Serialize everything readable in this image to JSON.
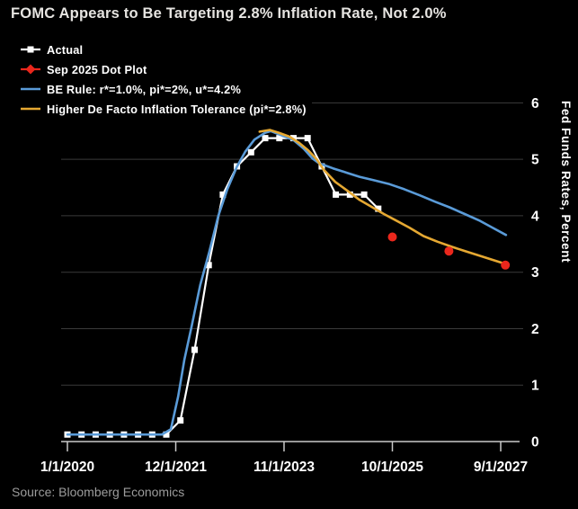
{
  "title": "FOMC Appears to Be Targeting 2.8% Inflation Rate, Not 2.0%",
  "source": "Source: Bloomberg Economics",
  "colors": {
    "actual": "#ffffff",
    "dot_plot": "#ea271c",
    "be_rule": "#5a9bd8",
    "tolerance": "#e5a832",
    "grid": "#3b3b3b",
    "axis": "#c9c9c9",
    "background": "#000000"
  },
  "legend": {
    "items": [
      {
        "label": "Actual",
        "marker": "line-square",
        "color": "#ffffff"
      },
      {
        "label": "Sep 2025 Dot Plot",
        "marker": "line-diamond",
        "color": "#ea271c"
      },
      {
        "label": "BE Rule: r*=1.0%, pi*=2%, u*=4.2%",
        "marker": "line",
        "color": "#5a9bd8"
      },
      {
        "label": "Higher De Facto Inflation Tolerance (pi*=2.8%)",
        "marker": "line",
        "color": "#e5a832"
      }
    ]
  },
  "chart_data": {
    "type": "line",
    "title": "FOMC Appears to Be Targeting 2.8% Inflation Rate, Not 2.0%",
    "xlabel": "",
    "ylabel": "Fed Funds Rates, Percent",
    "ylim": [
      0,
      6
    ],
    "grid": "horizontal",
    "legend_position": "top-left",
    "y_ticks": [
      0,
      1,
      2,
      3,
      4,
      5,
      6
    ],
    "x_tick_labels": [
      "1/1/2020",
      "12/1/2021",
      "11/1/2023",
      "10/1/2025",
      "9/1/2027"
    ],
    "x_tick_years": [
      2020.0,
      2021.917,
      2023.833,
      2025.75,
      2027.667
    ],
    "series": [
      {
        "name": "Actual",
        "color": "#ffffff",
        "marker": "square",
        "width": 2.2,
        "points": [
          [
            2020.0,
            0.125
          ],
          [
            2020.25,
            0.125
          ],
          [
            2020.5,
            0.125
          ],
          [
            2020.75,
            0.125
          ],
          [
            2021.0,
            0.125
          ],
          [
            2021.25,
            0.125
          ],
          [
            2021.5,
            0.125
          ],
          [
            2021.75,
            0.125
          ],
          [
            2022.0,
            0.375
          ],
          [
            2022.25,
            1.625
          ],
          [
            2022.5,
            3.125
          ],
          [
            2022.75,
            4.375
          ],
          [
            2023.0,
            4.875
          ],
          [
            2023.25,
            5.125
          ],
          [
            2023.5,
            5.375
          ],
          [
            2023.75,
            5.375
          ],
          [
            2024.0,
            5.375
          ],
          [
            2024.25,
            5.375
          ],
          [
            2024.5,
            4.875
          ],
          [
            2024.75,
            4.375
          ],
          [
            2025.0,
            4.375
          ],
          [
            2025.25,
            4.375
          ],
          [
            2025.5,
            4.125
          ]
        ]
      },
      {
        "name": "BE Rule: r*=1.0%, pi*=2%, u*=4.2%",
        "color": "#5a9bd8",
        "width": 2.6,
        "points": [
          [
            2020.0,
            0.125
          ],
          [
            2021.67,
            0.125
          ],
          [
            2021.83,
            0.22
          ],
          [
            2021.96,
            0.8
          ],
          [
            2022.07,
            1.45
          ],
          [
            2022.2,
            2.05
          ],
          [
            2022.35,
            2.77
          ],
          [
            2022.51,
            3.36
          ],
          [
            2022.67,
            4.0
          ],
          [
            2022.83,
            4.47
          ],
          [
            2023.0,
            4.87
          ],
          [
            2023.15,
            5.14
          ],
          [
            2023.31,
            5.35
          ],
          [
            2023.5,
            5.47
          ],
          [
            2023.6,
            5.5
          ],
          [
            2023.75,
            5.44
          ],
          [
            2024.0,
            5.34
          ],
          [
            2024.18,
            5.19
          ],
          [
            2024.34,
            5.01
          ],
          [
            2024.45,
            4.93
          ],
          [
            2024.7,
            4.84
          ],
          [
            2024.95,
            4.76
          ],
          [
            2025.17,
            4.69
          ],
          [
            2025.42,
            4.63
          ],
          [
            2025.7,
            4.56
          ],
          [
            2025.96,
            4.47
          ],
          [
            2026.24,
            4.36
          ],
          [
            2026.5,
            4.25
          ],
          [
            2026.76,
            4.15
          ],
          [
            2027.03,
            4.03
          ],
          [
            2027.3,
            3.91
          ],
          [
            2027.52,
            3.79
          ],
          [
            2027.76,
            3.66
          ]
        ]
      },
      {
        "name": "Higher De Facto Inflation Tolerance (pi*=2.8%)",
        "color": "#e5a832",
        "width": 2.6,
        "points": [
          [
            2023.4,
            5.49
          ],
          [
            2023.58,
            5.52
          ],
          [
            2023.74,
            5.47
          ],
          [
            2023.93,
            5.4
          ],
          [
            2024.1,
            5.29
          ],
          [
            2024.26,
            5.16
          ],
          [
            2024.41,
            5.0
          ],
          [
            2024.53,
            4.82
          ],
          [
            2024.74,
            4.6
          ],
          [
            2024.96,
            4.44
          ],
          [
            2025.17,
            4.28
          ],
          [
            2025.38,
            4.16
          ],
          [
            2025.6,
            4.03
          ],
          [
            2025.79,
            3.93
          ],
          [
            2026.05,
            3.79
          ],
          [
            2026.3,
            3.64
          ],
          [
            2026.55,
            3.54
          ],
          [
            2026.8,
            3.45
          ],
          [
            2027.05,
            3.37
          ],
          [
            2027.3,
            3.29
          ],
          [
            2027.55,
            3.21
          ],
          [
            2027.8,
            3.13
          ]
        ]
      },
      {
        "name": "Sep 2025 Dot Plot",
        "color": "#ea271c",
        "style": "points",
        "marker": "circle",
        "points": [
          [
            2025.75,
            3.625
          ],
          [
            2026.75,
            3.375
          ],
          [
            2027.75,
            3.125
          ]
        ]
      }
    ]
  }
}
